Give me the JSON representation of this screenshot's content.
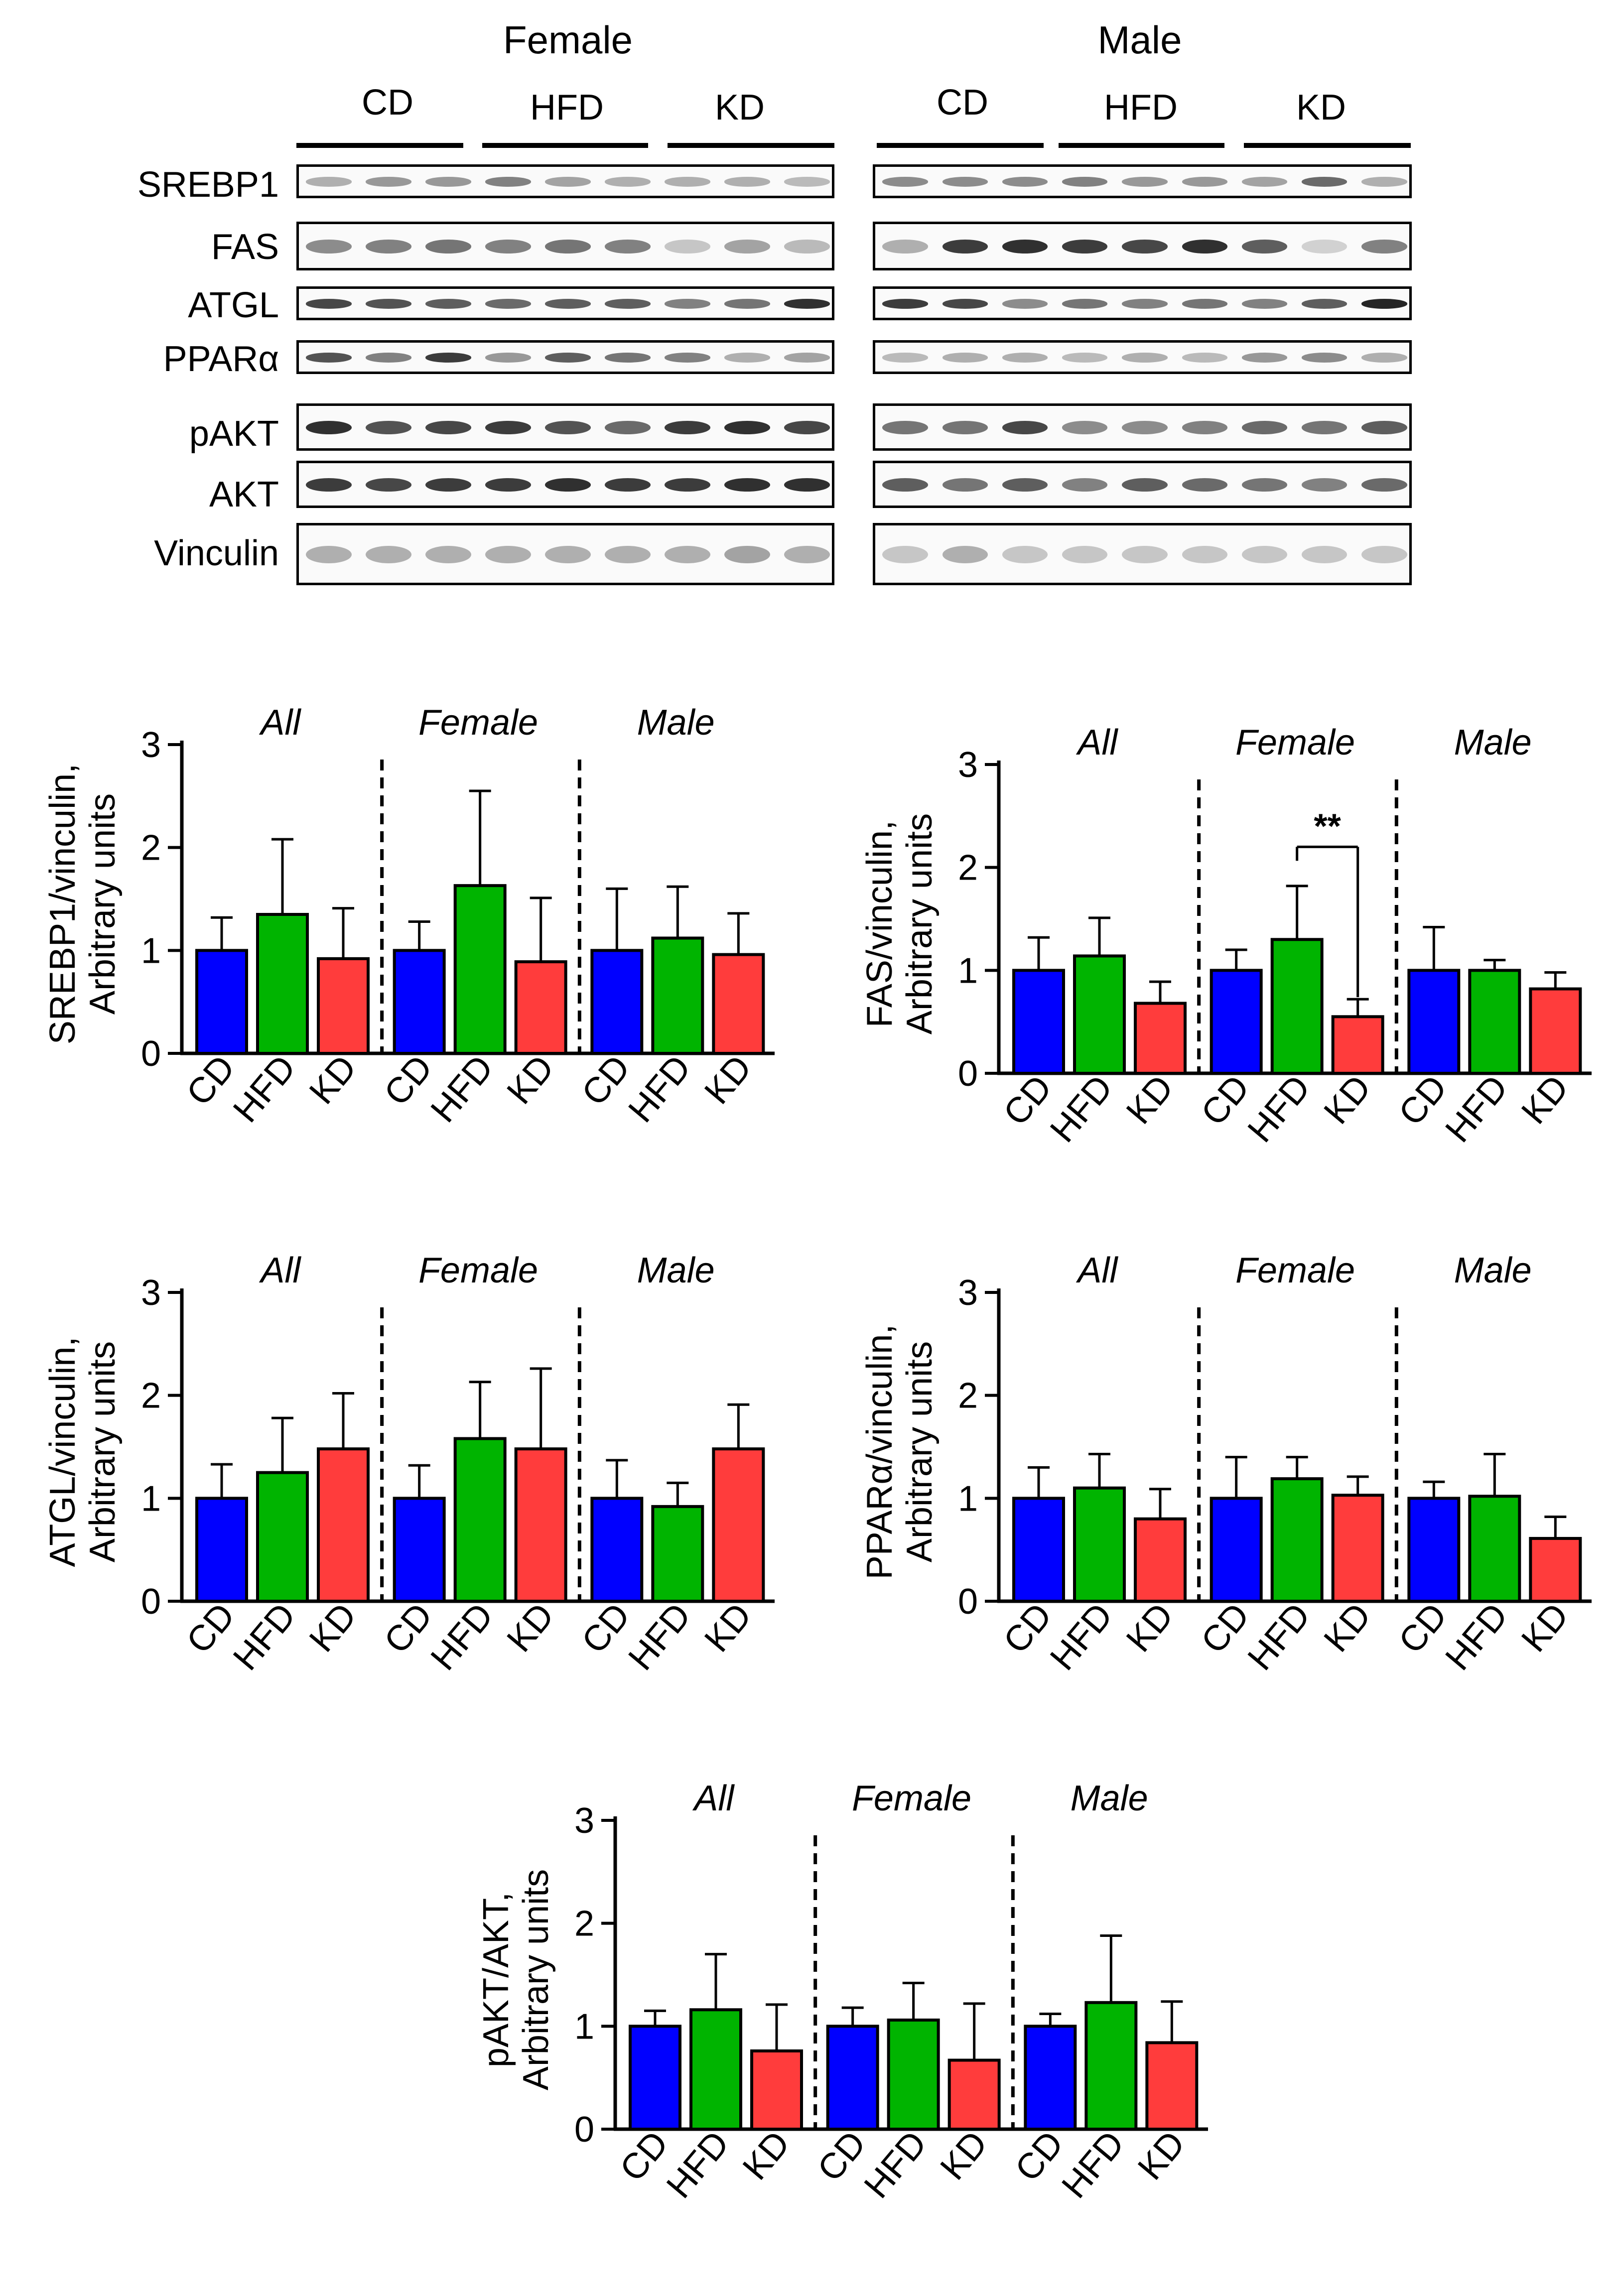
{
  "blot": {
    "female_title": "Female",
    "male_title": "Male",
    "groups": [
      "CD",
      "HFD",
      "KD"
    ],
    "proteins": [
      "SREBP1",
      "FAS",
      "ATGL",
      "PPARα",
      "pAKT",
      "AKT",
      "Vinculin"
    ]
  },
  "colors": {
    "CD": "#0000ff",
    "HFD": "#00b400",
    "KD": "#ff3c3c",
    "axis": "#000000"
  },
  "chart_data": [
    {
      "type": "bar",
      "id": "srebp1",
      "ylabel_line1": "SREBP1/vinculin,",
      "ylabel_line2": "Arbitrary units",
      "ylim": [
        0,
        3
      ],
      "yticks": [
        "0",
        "1",
        "2",
        "3"
      ],
      "panels": [
        "All",
        "Female",
        "Male"
      ],
      "categories": [
        "CD",
        "HFD",
        "KD"
      ],
      "series": [
        {
          "panel": "All",
          "values": [
            1.0,
            1.35,
            0.92
          ],
          "errors": [
            0.32,
            0.73,
            0.49
          ]
        },
        {
          "panel": "Female",
          "values": [
            1.0,
            1.63,
            0.89
          ],
          "errors": [
            0.28,
            0.92,
            0.62
          ]
        },
        {
          "panel": "Male",
          "values": [
            1.0,
            1.12,
            0.96
          ],
          "errors": [
            0.6,
            0.5,
            0.4
          ]
        }
      ],
      "annotation": null
    },
    {
      "type": "bar",
      "id": "fas",
      "ylabel_line1": "FAS/vinculin,",
      "ylabel_line2": "Arbitrary units",
      "ylim": [
        0,
        3
      ],
      "yticks": [
        "0",
        "1",
        "2",
        "3"
      ],
      "panels": [
        "All",
        "Female",
        "Male"
      ],
      "categories": [
        "CD",
        "HFD",
        "KD"
      ],
      "series": [
        {
          "panel": "All",
          "values": [
            1.0,
            1.14,
            0.68
          ],
          "errors": [
            0.32,
            0.37,
            0.21
          ]
        },
        {
          "panel": "Female",
          "values": [
            1.0,
            1.3,
            0.55
          ],
          "errors": [
            0.2,
            0.52,
            0.17
          ]
        },
        {
          "panel": "Male",
          "values": [
            1.0,
            1.0,
            0.82
          ],
          "errors": [
            0.42,
            0.1,
            0.16
          ]
        }
      ],
      "annotation": "**"
    },
    {
      "type": "bar",
      "id": "atgl",
      "ylabel_line1": "ATGL/vinculin,",
      "ylabel_line2": "Arbitrary units",
      "ylim": [
        0,
        3
      ],
      "yticks": [
        "0",
        "1",
        "2",
        "3"
      ],
      "panels": [
        "All",
        "Female",
        "Male"
      ],
      "categories": [
        "CD",
        "HFD",
        "KD"
      ],
      "series": [
        {
          "panel": "All",
          "values": [
            1.0,
            1.25,
            1.48
          ],
          "errors": [
            0.33,
            0.53,
            0.54
          ]
        },
        {
          "panel": "Female",
          "values": [
            1.0,
            1.58,
            1.48
          ],
          "errors": [
            0.32,
            0.55,
            0.78
          ]
        },
        {
          "panel": "Male",
          "values": [
            1.0,
            0.92,
            1.48
          ],
          "errors": [
            0.37,
            0.23,
            0.43
          ]
        }
      ],
      "annotation": null
    },
    {
      "type": "bar",
      "id": "ppara",
      "ylabel_line1": "PPARα/vinculin,",
      "ylabel_line2": "Arbitrary units",
      "ylim": [
        0,
        3
      ],
      "yticks": [
        "0",
        "1",
        "2",
        "3"
      ],
      "panels": [
        "All",
        "Female",
        "Male"
      ],
      "categories": [
        "CD",
        "HFD",
        "KD"
      ],
      "series": [
        {
          "panel": "All",
          "values": [
            1.0,
            1.1,
            0.8
          ],
          "errors": [
            0.3,
            0.33,
            0.29
          ]
        },
        {
          "panel": "Female",
          "values": [
            1.0,
            1.19,
            1.03
          ],
          "errors": [
            0.4,
            0.21,
            0.18
          ]
        },
        {
          "panel": "Male",
          "values": [
            1.0,
            1.02,
            0.61
          ],
          "errors": [
            0.16,
            0.41,
            0.21
          ]
        }
      ],
      "annotation": null
    },
    {
      "type": "bar",
      "id": "pakt",
      "ylabel_line1": "pAKT/AKT,",
      "ylabel_line2": "Arbitrary units",
      "ylim": [
        0,
        3
      ],
      "yticks": [
        "0",
        "1",
        "2",
        "3"
      ],
      "panels": [
        "All",
        "Female",
        "Male"
      ],
      "categories": [
        "CD",
        "HFD",
        "KD"
      ],
      "series": [
        {
          "panel": "All",
          "values": [
            1.0,
            1.16,
            0.76
          ],
          "errors": [
            0.15,
            0.54,
            0.45
          ]
        },
        {
          "panel": "Female",
          "values": [
            1.0,
            1.06,
            0.67
          ],
          "errors": [
            0.18,
            0.36,
            0.55
          ]
        },
        {
          "panel": "Male",
          "values": [
            1.0,
            1.23,
            0.84
          ],
          "errors": [
            0.12,
            0.65,
            0.4
          ]
        }
      ],
      "annotation": null
    }
  ]
}
